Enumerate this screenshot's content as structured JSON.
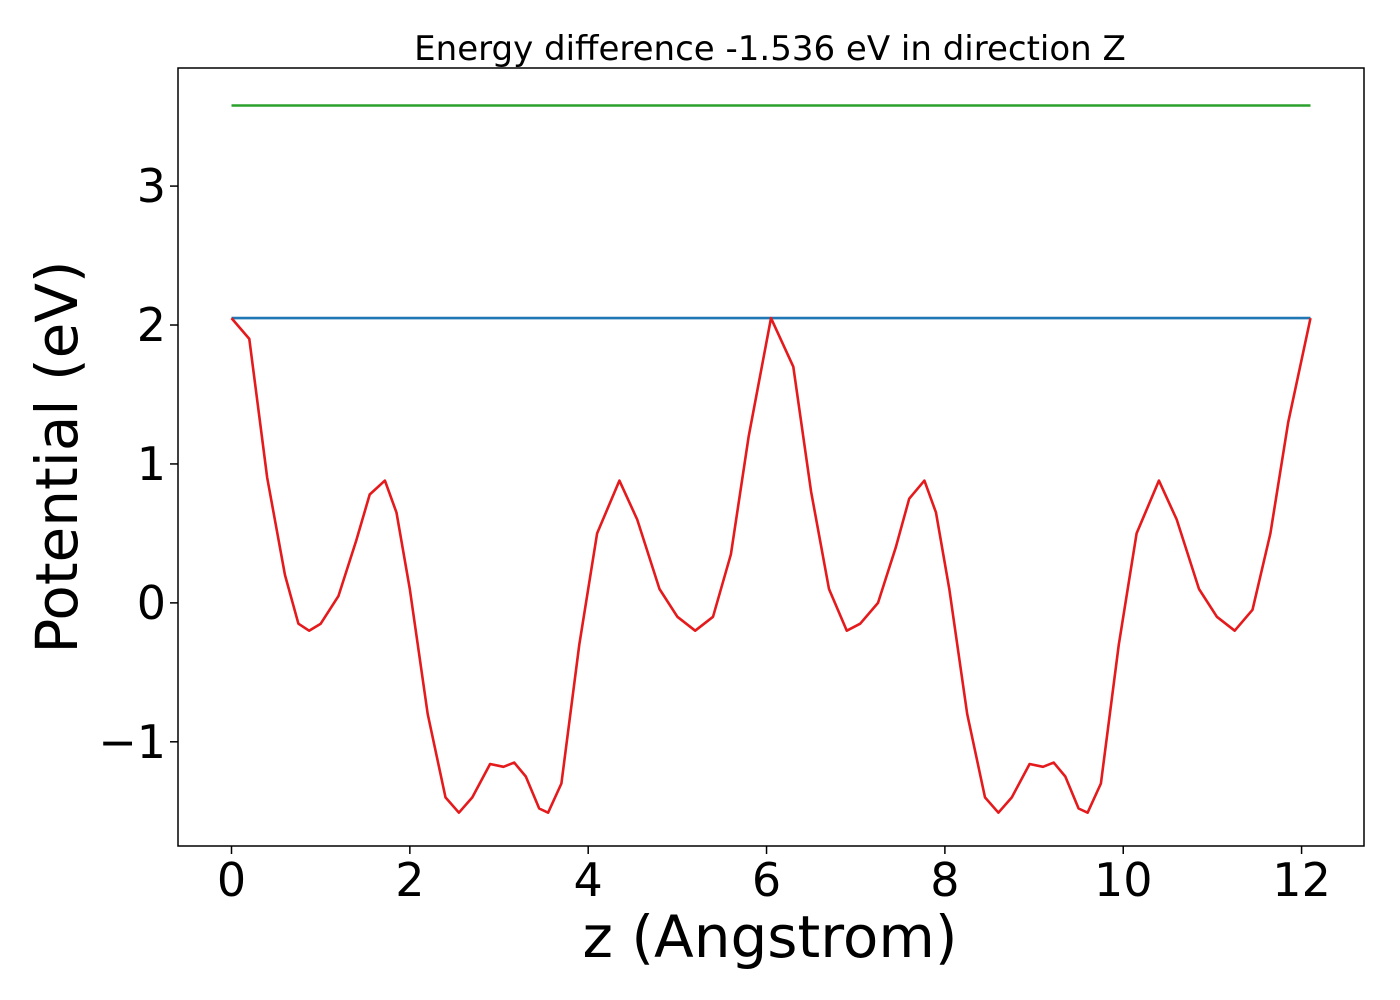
{
  "chart_data": {
    "type": "line",
    "title": "Energy difference -1.536 eV in direction Z",
    "xlabel": "z (Angstrom)",
    "ylabel": "Potential (eV)",
    "xlim": [
      -0.6,
      12.7
    ],
    "ylim": [
      -1.75,
      3.85
    ],
    "xticks": [
      0,
      2,
      4,
      6,
      8,
      10,
      12
    ],
    "xtick_labels": [
      "0",
      "2",
      "4",
      "6",
      "8",
      "10",
      "12"
    ],
    "yticks": [
      -1,
      0,
      1,
      2,
      3
    ],
    "ytick_labels": [
      "−1",
      "0",
      "1",
      "2",
      "3"
    ],
    "grid": false,
    "series": [
      {
        "color": "#2ca02c",
        "x": [
          0,
          12.1
        ],
        "y": [
          3.58,
          3.58
        ]
      },
      {
        "color": "#1f77b4",
        "x": [
          0,
          12.1
        ],
        "y": [
          2.05,
          2.05
        ]
      },
      {
        "color": "#e41a1c",
        "x": [
          0,
          0.2,
          0.4,
          0.6,
          0.75,
          0.87,
          1.0,
          1.2,
          1.4,
          1.55,
          1.72,
          1.85,
          2.0,
          2.2,
          2.4,
          2.55,
          2.7,
          2.9,
          3.05,
          3.17,
          3.3,
          3.45,
          3.55,
          3.7,
          3.9,
          4.1,
          4.35,
          4.55,
          4.8,
          5.0,
          5.2,
          5.4,
          5.6,
          5.8,
          6.05,
          6.3,
          6.5,
          6.7,
          6.9,
          7.05,
          7.25,
          7.45,
          7.6,
          7.77,
          7.9,
          8.05,
          8.25,
          8.45,
          8.6,
          8.75,
          8.95,
          9.1,
          9.22,
          9.35,
          9.5,
          9.6,
          9.75,
          9.95,
          10.15,
          10.4,
          10.6,
          10.85,
          11.05,
          11.25,
          11.45,
          11.65,
          11.85,
          12.1
        ],
        "y": [
          2.05,
          1.9,
          0.9,
          0.2,
          -0.15,
          -0.2,
          -0.15,
          0.05,
          0.45,
          0.78,
          0.88,
          0.65,
          0.1,
          -0.8,
          -1.4,
          -1.51,
          -1.4,
          -1.16,
          -1.18,
          -1.15,
          -1.25,
          -1.48,
          -1.51,
          -1.3,
          -0.3,
          0.5,
          0.88,
          0.6,
          0.1,
          -0.1,
          -0.2,
          -0.1,
          0.35,
          1.2,
          2.05,
          1.7,
          0.8,
          0.1,
          -0.2,
          -0.15,
          0.0,
          0.4,
          0.75,
          0.88,
          0.65,
          0.1,
          -0.8,
          -1.4,
          -1.51,
          -1.4,
          -1.16,
          -1.18,
          -1.15,
          -1.25,
          -1.48,
          -1.51,
          -1.3,
          -0.3,
          0.5,
          0.88,
          0.6,
          0.1,
          -0.1,
          -0.2,
          -0.05,
          0.5,
          1.3,
          2.05
        ]
      }
    ]
  }
}
